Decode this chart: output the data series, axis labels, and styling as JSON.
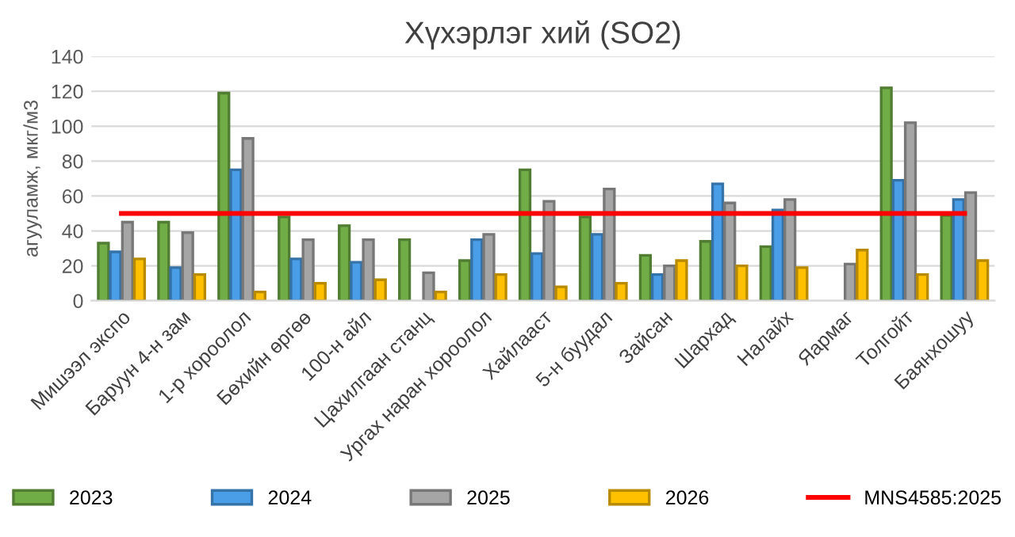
{
  "chart_data": {
    "type": "bar",
    "title": "Хүхэрлэг хий (SO2)",
    "ylabel": "агууламж, мкг/м3",
    "categories": [
      "Мишээл экспо",
      "Баруун 4-н зам",
      "1-р хороолол",
      "Бөхийн өргөө",
      "100-н айл",
      "Цахилгаан станц",
      "Ургах наран хороолол",
      "Хайлааст",
      "5-н буудал",
      "Зайсан",
      "Шархад",
      "Налайх",
      "Яармаг",
      "Толгойт",
      "Баянхошуу"
    ],
    "series": [
      {
        "name": "2023",
        "color": "#70ad47",
        "values": [
          33,
          45,
          119,
          48,
          43,
          35,
          23,
          75,
          48,
          26,
          34,
          31,
          null,
          122,
          49
        ]
      },
      {
        "name": "2024",
        "color": "#4a9ee8",
        "values": [
          28,
          19,
          75,
          24,
          22,
          null,
          35,
          27,
          38,
          15,
          67,
          52,
          null,
          69,
          58
        ]
      },
      {
        "name": "2025",
        "color": "#a5a5a5",
        "values": [
          45,
          39,
          93,
          35,
          35,
          16,
          38,
          57,
          64,
          20,
          56,
          58,
          21,
          102,
          62
        ]
      },
      {
        "name": "2026",
        "color": "#ffc000",
        "values": [
          24,
          15,
          5,
          10,
          12,
          5,
          15,
          8,
          10,
          23,
          20,
          19,
          29,
          15,
          23
        ]
      },
      {
        "name": "MNS4585:2025",
        "type": "line",
        "color": "#ff0000",
        "values": [
          50,
          50,
          50,
          50,
          50,
          50,
          50,
          50,
          50,
          50,
          50,
          50,
          50,
          50,
          50
        ]
      }
    ],
    "ylim": [
      0,
      140
    ],
    "yticks": [
      0,
      20,
      40,
      60,
      80,
      100,
      120,
      140
    ],
    "grid": "y",
    "legend": "bottom"
  }
}
